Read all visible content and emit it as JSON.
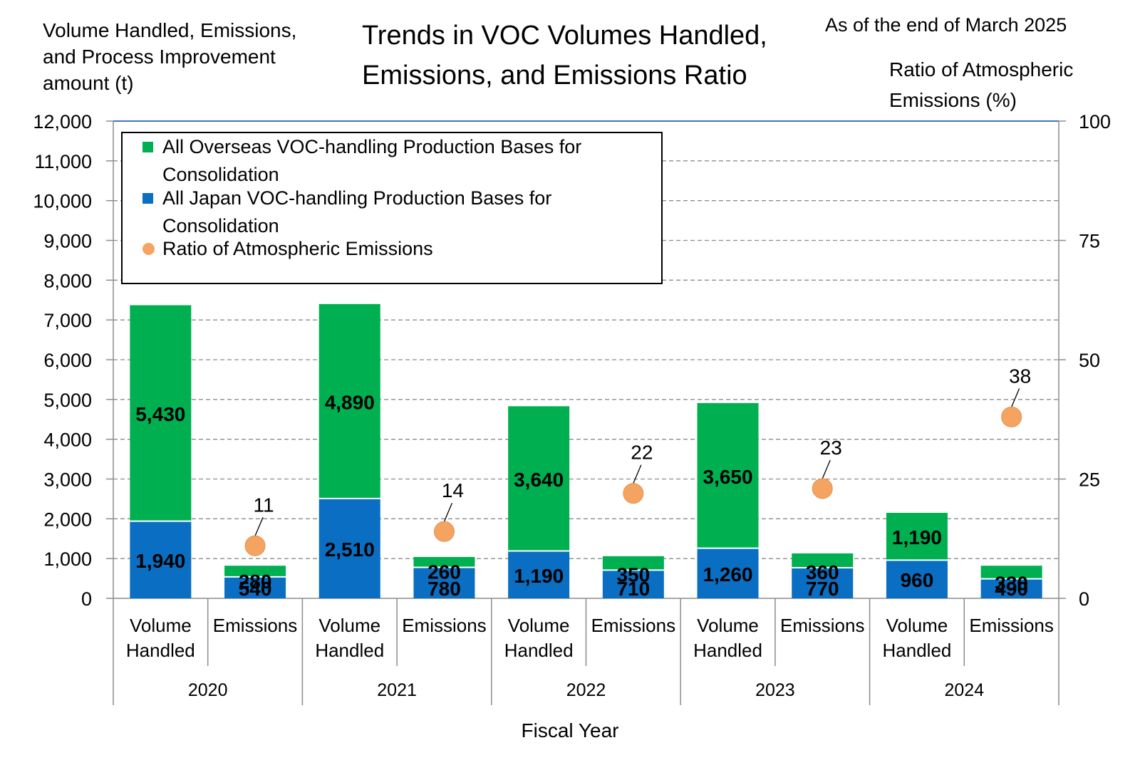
{
  "chart_data": {
    "type": "bar",
    "title": "Trends in VOC Volumes Handled, Emissions, and Emissions Ratio",
    "note": "As of the end of March 2025",
    "ylabel": "Volume Handled, Emissions, and Process Improvement amount (t)",
    "y2label": "Ratio of Atmospheric Emissions (%)",
    "xlabel": "Fiscal Year",
    "ylim": [
      0,
      12000
    ],
    "y2lim": [
      0,
      100
    ],
    "yticks": [
      "0",
      "1,000",
      "2,000",
      "3,000",
      "4,000",
      "5,000",
      "6,000",
      "7,000",
      "8,000",
      "9,000",
      "10,000",
      "11,000",
      "12,000"
    ],
    "y2ticks": [
      "0",
      "25",
      "50",
      "75",
      "100"
    ],
    "years": [
      "2020",
      "2021",
      "2022",
      "2023",
      "2024"
    ],
    "categories": [
      "Volume Handled",
      "Emissions",
      "Volume Handled",
      "Emissions",
      "Volume Handled",
      "Emissions",
      "Volume Handled",
      "Emissions",
      "Volume Handled",
      "Emissions"
    ],
    "series": [
      {
        "name": "All Japan VOC-handling Production Bases for Consolidation",
        "color": "#0a6ec2",
        "values": [
          1940,
          540,
          2510,
          780,
          1190,
          710,
          1260,
          770,
          960,
          490
        ],
        "labels": [
          "1,940",
          "540",
          "2,510",
          "780",
          "1,190",
          "710",
          "1,260",
          "770",
          "960",
          "490"
        ]
      },
      {
        "name": "All Overseas VOC-handling Production Bases for Consolidation",
        "color": "#00b050",
        "values": [
          5430,
          280,
          4890,
          260,
          3640,
          350,
          3650,
          360,
          1190,
          330
        ],
        "labels": [
          "5,430",
          "280",
          "4,890",
          "260",
          "3,640",
          "350",
          "3,650",
          "360",
          "1,190",
          "330"
        ]
      }
    ],
    "ratio": {
      "name": "Ratio of Atmospheric Emissions",
      "color": "#f4a460",
      "values": [
        11,
        14,
        22,
        23,
        38
      ],
      "labels": [
        "11",
        "14",
        "22",
        "23",
        "38"
      ]
    },
    "legend": [
      "All Overseas VOC-handling Production Bases for Consolidation",
      "All Japan VOC-handling Production Bases for Consolidation",
      "Ratio of Atmospheric Emissions"
    ]
  }
}
